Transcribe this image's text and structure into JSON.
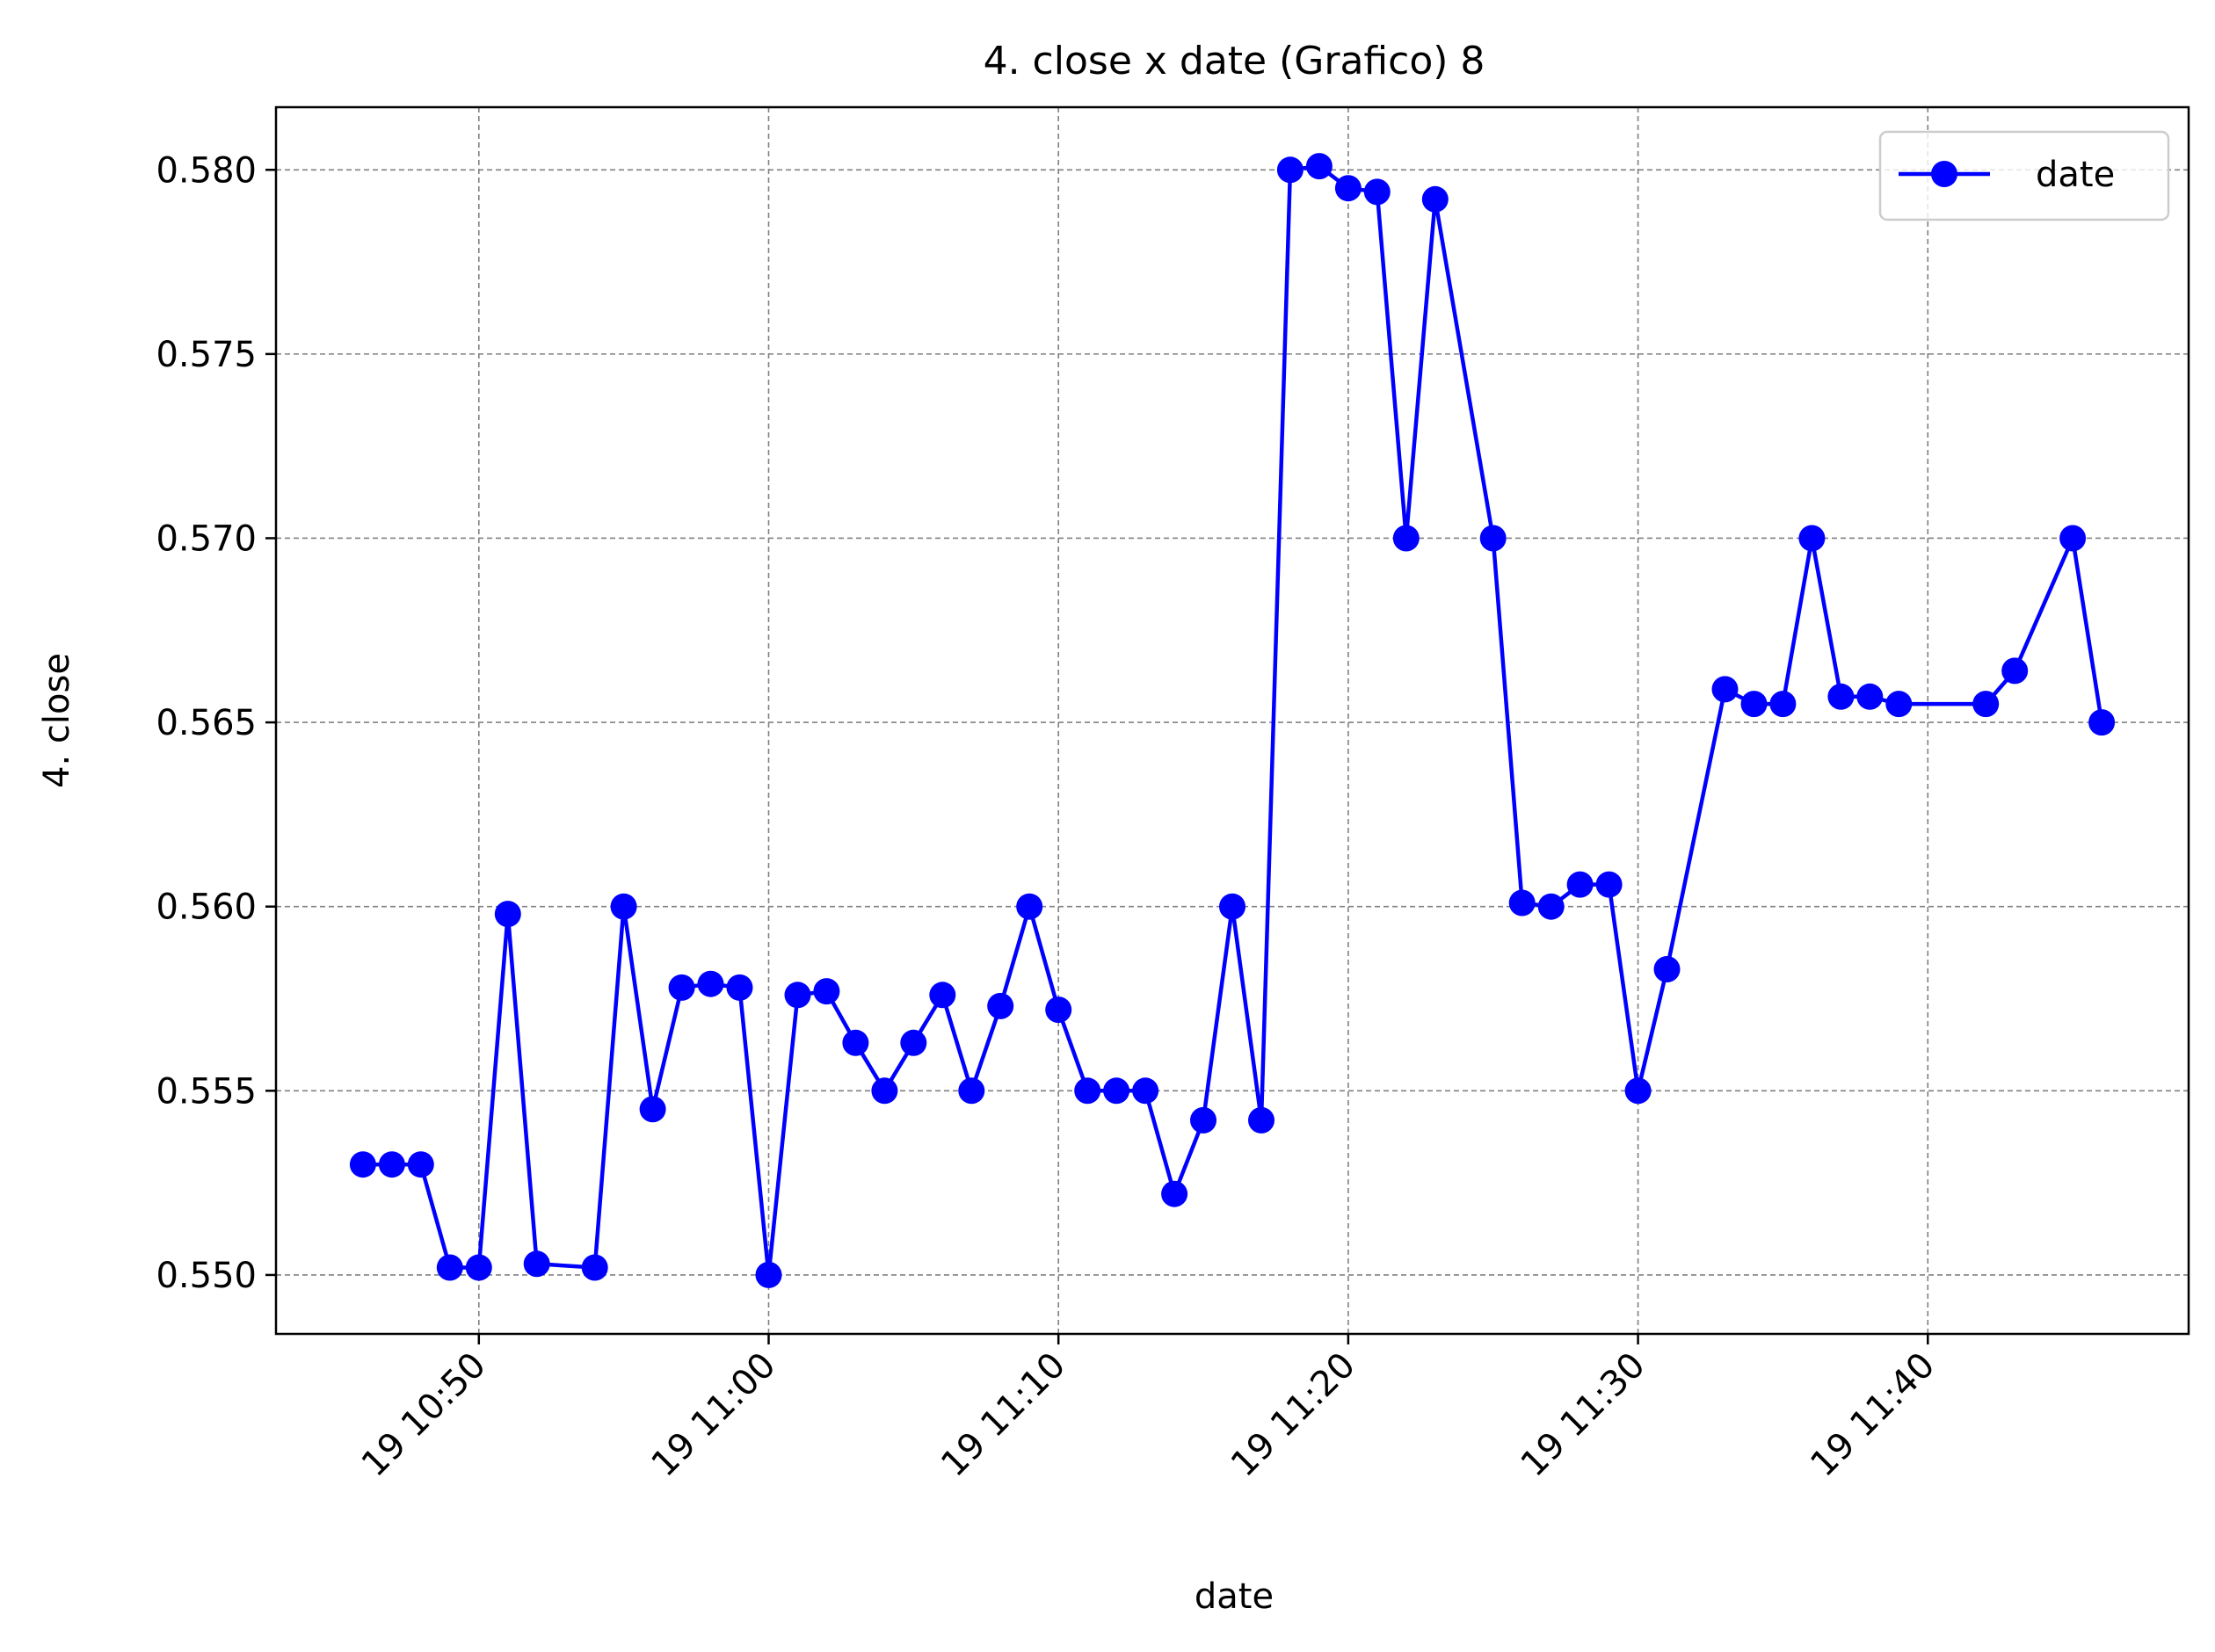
{
  "chart_data": {
    "type": "line",
    "title": "4. close x date (Grafico) 8",
    "xlabel": "date",
    "ylabel": "4. close",
    "x_tick_labels": [
      "19 10:50",
      "19 11:00",
      "19 11:10",
      "19 11:20",
      "19 11:30",
      "19 11:40"
    ],
    "x_tick_values": [
      "10:50",
      "11:00",
      "11:10",
      "11:20",
      "11:30",
      "11:40"
    ],
    "y_tick_labels": [
      "0.550",
      "0.555",
      "0.560",
      "0.565",
      "0.570",
      "0.575",
      "0.580"
    ],
    "y_tick_values": [
      0.55,
      0.555,
      0.56,
      0.565,
      0.57,
      0.575,
      0.58
    ],
    "xlim": [
      "10:43",
      "11:49"
    ],
    "ylim": [
      0.5484,
      0.5817
    ],
    "grid": true,
    "legend_position": "top-right",
    "series": [
      {
        "name": "date",
        "color": "#0000ff",
        "marker": "circle",
        "x": [
          "10:46",
          "10:47",
          "10:48",
          "10:49",
          "10:50",
          "10:51",
          "10:52",
          "10:54",
          "10:55",
          "10:56",
          "10:57",
          "10:58",
          "10:59",
          "11:00",
          "11:01",
          "11:02",
          "11:03",
          "11:04",
          "11:05",
          "11:06",
          "11:07",
          "11:08",
          "11:09",
          "11:10",
          "11:11",
          "11:12",
          "11:13",
          "11:14",
          "11:15",
          "11:16",
          "11:17",
          "11:18",
          "11:19",
          "11:20",
          "11:21",
          "11:22",
          "11:23",
          "11:25",
          "11:26",
          "11:27",
          "11:28",
          "11:29",
          "11:30",
          "11:31",
          "11:33",
          "11:34",
          "11:35",
          "11:36",
          "11:37",
          "11:38",
          "11:39",
          "11:42",
          "11:43",
          "11:45",
          "11:46"
        ],
        "y": [
          0.553,
          0.553,
          0.553,
          0.5502,
          0.5502,
          0.5598,
          0.5503,
          0.5502,
          0.56,
          0.5545,
          0.5578,
          0.5579,
          0.5578,
          0.55,
          0.5576,
          0.5577,
          0.5563,
          0.555,
          0.5563,
          0.5576,
          0.555,
          0.5573,
          0.56,
          0.5572,
          0.555,
          0.555,
          0.555,
          0.5522,
          0.5542,
          0.56,
          0.5542,
          0.58,
          0.5801,
          0.5795,
          0.5794,
          0.57,
          0.5792,
          0.57,
          0.5601,
          0.56,
          0.5606,
          0.5606,
          0.555,
          0.5583,
          0.5659,
          0.5655,
          0.5655,
          0.57,
          0.5657,
          0.5657,
          0.5655,
          0.5655,
          0.5664,
          0.57,
          0.565
        ]
      }
    ]
  }
}
